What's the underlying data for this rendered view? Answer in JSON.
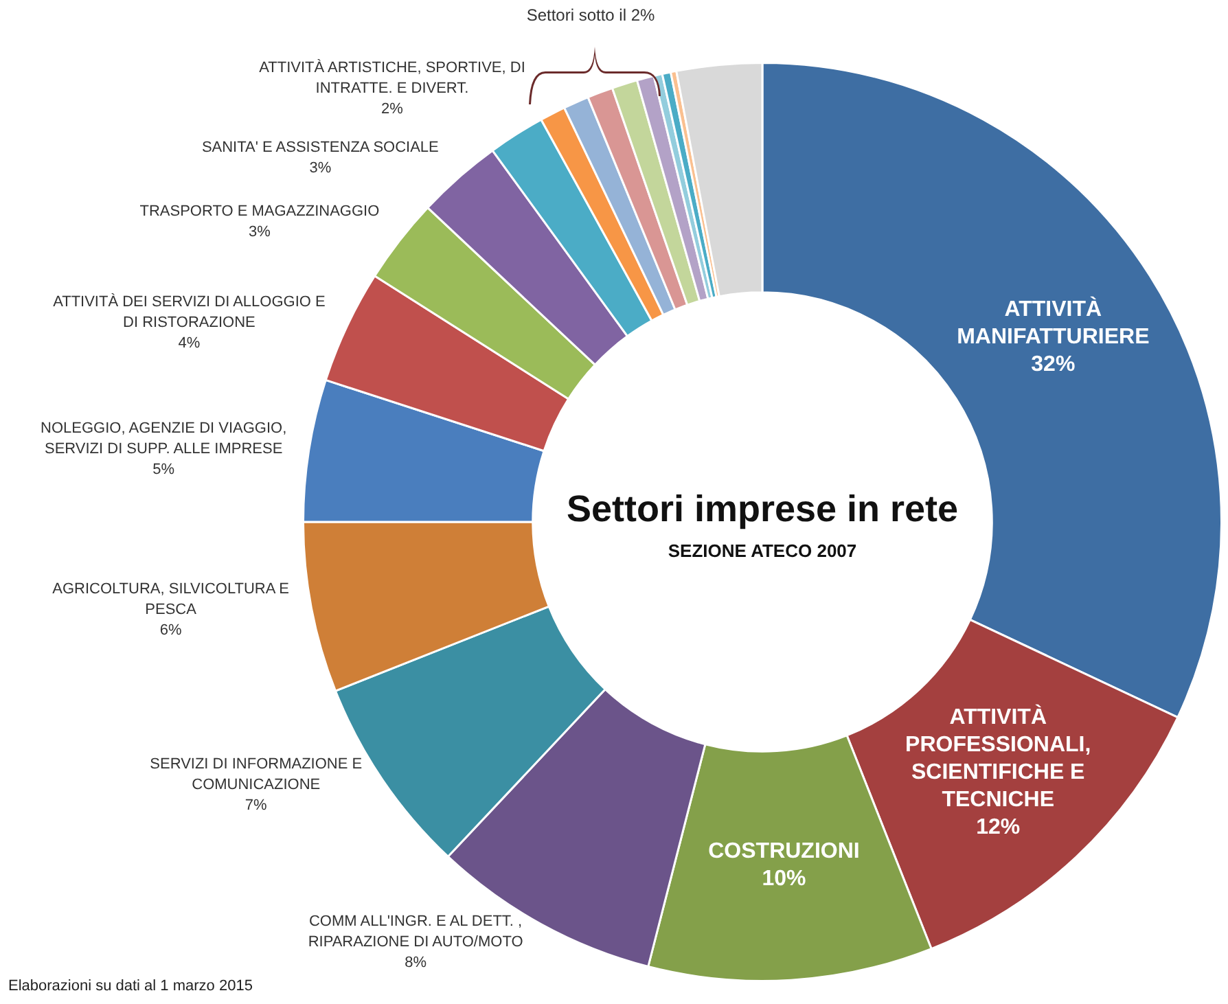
{
  "chart_data": {
    "type": "donut",
    "title": "Settori imprese in rete",
    "subtitle": "SEZIONE ATECO 2007",
    "categories": [
      "ATTIVITÀ MANIFATTURIERE",
      "ATTIVITÀ PROFESSIONALI, SCIENTIFICHE E TECNICHE",
      "COSTRUZIONI",
      "COMM ALL'INGR. E AL DETT. , RIPARAZIONE DI AUTO/MOTO",
      "SERVIZI DI INFORMAZIONE E COMUNICAZIONE",
      "AGRICOLTURA, SILVICOLTURA E PESCA",
      "NOLEGGIO, AGENZIE DI VIAGGIO, SERVIZI DI SUPP. ALLE IMPRESE",
      "ATTIVITÀ DEI SERVIZI DI ALLOGGIO E DI RISTORAZIONE",
      "TRASPORTO E MAGAZZINAGGIO",
      "SANITA' E ASSISTENZA SOCIALE",
      "ATTIVITÀ ARTISTICHE, SPORTIVE, DI INTRATTE. E DIVERT.",
      null,
      null,
      null,
      null,
      null,
      null,
      null,
      null,
      null
    ],
    "values": [
      32,
      12,
      10,
      8,
      7,
      6,
      5,
      4,
      3,
      3,
      2,
      0.9,
      0.9,
      0.9,
      0.9,
      0.6,
      0.3,
      0.3,
      0.2,
      3
    ],
    "colors": [
      "#3e6ea3",
      "#a4403f",
      "#84a04a",
      "#6b548a",
      "#3b8fa3",
      "#cf7f37",
      "#4a7ebe",
      "#c0504d",
      "#9bbb59",
      "#8064a2",
      "#4bacc6",
      "#f79646",
      "#95b3d7",
      "#d99694",
      "#c3d69b",
      "#b3a2c7",
      "#93cddd",
      "#4bacc6",
      "#fac090",
      "#d9d9d9"
    ],
    "value_labels": [
      "32%",
      "12%",
      "10%",
      "8%",
      "7%",
      "6%",
      "5%",
      "4%",
      "3%",
      "3%",
      "2%",
      null,
      null,
      null,
      null,
      null,
      null,
      null,
      null,
      null
    ],
    "annotations": [
      "Settori sotto il 2%",
      "Elaborazioni su dati al 1 marzo 2015"
    ]
  }
}
